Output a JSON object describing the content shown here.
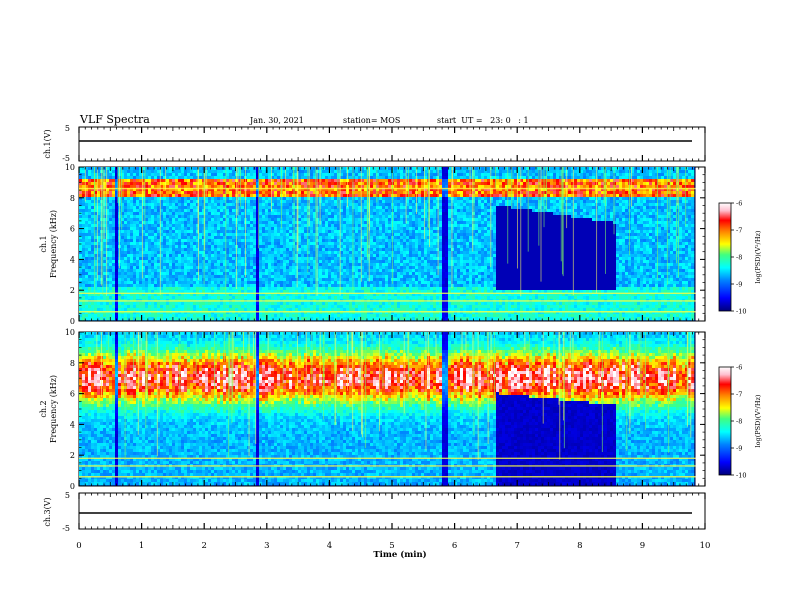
{
  "header": {
    "title": "VLF Spectra",
    "date": "Jan. 30, 2021",
    "station": "station= MOS",
    "start": "start  UT =   23: 0   : 1"
  },
  "chart_data": [
    {
      "type": "line",
      "panel": "ch1-waveform",
      "ylabel": "ch.1(V)",
      "ylim": [
        -5,
        5
      ],
      "yticks": [
        "5",
        "-5"
      ],
      "x": [
        0,
        10
      ],
      "y": [
        0,
        0
      ]
    },
    {
      "type": "heatmap",
      "panel": "ch1-spectrogram",
      "ylabel": "ch.1\nFrequency (kHz)",
      "ylim": [
        0,
        10
      ],
      "yticks": [
        "0",
        "2",
        "4",
        "6",
        "8",
        "10"
      ],
      "xlim": [
        0,
        9.85
      ],
      "colorbar": {
        "label": "log(PSD)(V²/Hz)",
        "range": [
          -10,
          -6
        ],
        "ticks": [
          "-6",
          "-7",
          "-8",
          "-9",
          "-10"
        ]
      },
      "features": {
        "quiet_intervals_min": [
          [
            6.65,
            8.6
          ]
        ],
        "bright_lines_kHz": [
          0.6,
          1.3,
          1.8,
          8.6
        ],
        "vertical_dropouts_min": [
          0.6,
          2.85,
          5.85
        ]
      }
    },
    {
      "type": "heatmap",
      "panel": "ch2-spectrogram",
      "ylabel": "ch.2\nFrequency (kHz)",
      "ylim": [
        0,
        10
      ],
      "yticks": [
        "0",
        "2",
        "4",
        "6",
        "8",
        "10"
      ],
      "xlim": [
        0,
        9.85
      ],
      "colorbar": {
        "label": "log(PSD)(V²/Hz)",
        "range": [
          -10,
          -6
        ],
        "ticks": [
          "-6",
          "-7",
          "-8",
          "-9",
          "-10"
        ]
      },
      "features": {
        "quiet_intervals_min": [
          [
            6.65,
            8.6
          ]
        ],
        "hiss_band_kHz": [
          5.5,
          8.5
        ],
        "vertical_dropouts_min": [
          0.6,
          2.85,
          5.85
        ]
      }
    },
    {
      "type": "line",
      "panel": "ch3-waveform",
      "ylabel": "ch.3(V)",
      "ylim": [
        -5,
        5
      ],
      "yticks": [
        "5",
        "-5"
      ],
      "x": [
        0,
        10
      ],
      "y": [
        0,
        0
      ]
    }
  ],
  "xaxis": {
    "label": "Time (min)",
    "xlim": [
      0,
      10
    ],
    "ticks": [
      "0",
      "1",
      "2",
      "3",
      "4",
      "5",
      "6",
      "7",
      "8",
      "9",
      "10"
    ]
  },
  "colors": {
    "colormap": [
      "#00007a",
      "#0000ff",
      "#0080ff",
      "#00ffff",
      "#40ff80",
      "#ffff00",
      "#ff8000",
      "#ff0000",
      "#ffc0d0",
      "#ffffff"
    ]
  }
}
